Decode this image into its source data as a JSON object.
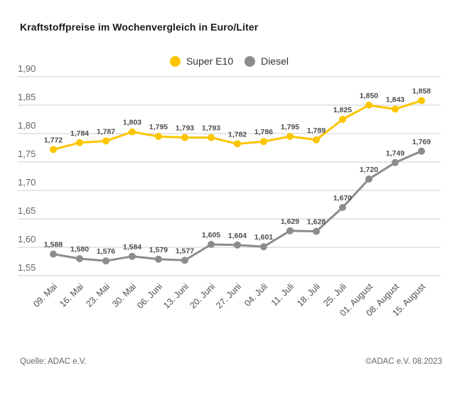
{
  "footer": {
    "source": "Quelle: ADAC e.V.",
    "copyright": "©ADAC e.V. 08.2023"
  },
  "chart_data": {
    "type": "line",
    "title": "Kraftstoffpreise im Wochenvergleich in Euro/Liter",
    "unit": "Euro/Liter",
    "categories": [
      "09. Mai",
      "16. Mai",
      "23. Mai",
      "30. Mai",
      "06. Juni",
      "13. Juni",
      "20. Juni",
      "27. Juni",
      "04. Juli",
      "11. Juli",
      "18. Juli",
      "25. Juli",
      "01. August",
      "08. August",
      "15. August"
    ],
    "series": [
      {
        "name": "Super E10",
        "color": "#FCC500",
        "values": [
          1.772,
          1.784,
          1.787,
          1.803,
          1.795,
          1.793,
          1.793,
          1.782,
          1.786,
          1.795,
          1.789,
          1.825,
          1.85,
          1.843,
          1.858
        ]
      },
      {
        "name": "Diesel",
        "color": "#8C8C8C",
        "values": [
          1.588,
          1.58,
          1.576,
          1.584,
          1.579,
          1.577,
          1.605,
          1.604,
          1.601,
          1.629,
          1.628,
          1.67,
          1.72,
          1.749,
          1.769
        ]
      }
    ],
    "yticks": [
      1.9,
      1.85,
      1.8,
      1.75,
      1.7,
      1.65,
      1.6,
      1.55
    ],
    "ylim": [
      1.55,
      1.9
    ],
    "grid": true,
    "legend_position": "top",
    "decimal_separator": ",",
    "value_label_decimals": 3,
    "tick_decimals": 2,
    "colors": {
      "grid": "#CCCCCC",
      "value_label": "#4D4D4D",
      "tick_label": "#666666",
      "axis_label": "#4D4D4D"
    }
  }
}
